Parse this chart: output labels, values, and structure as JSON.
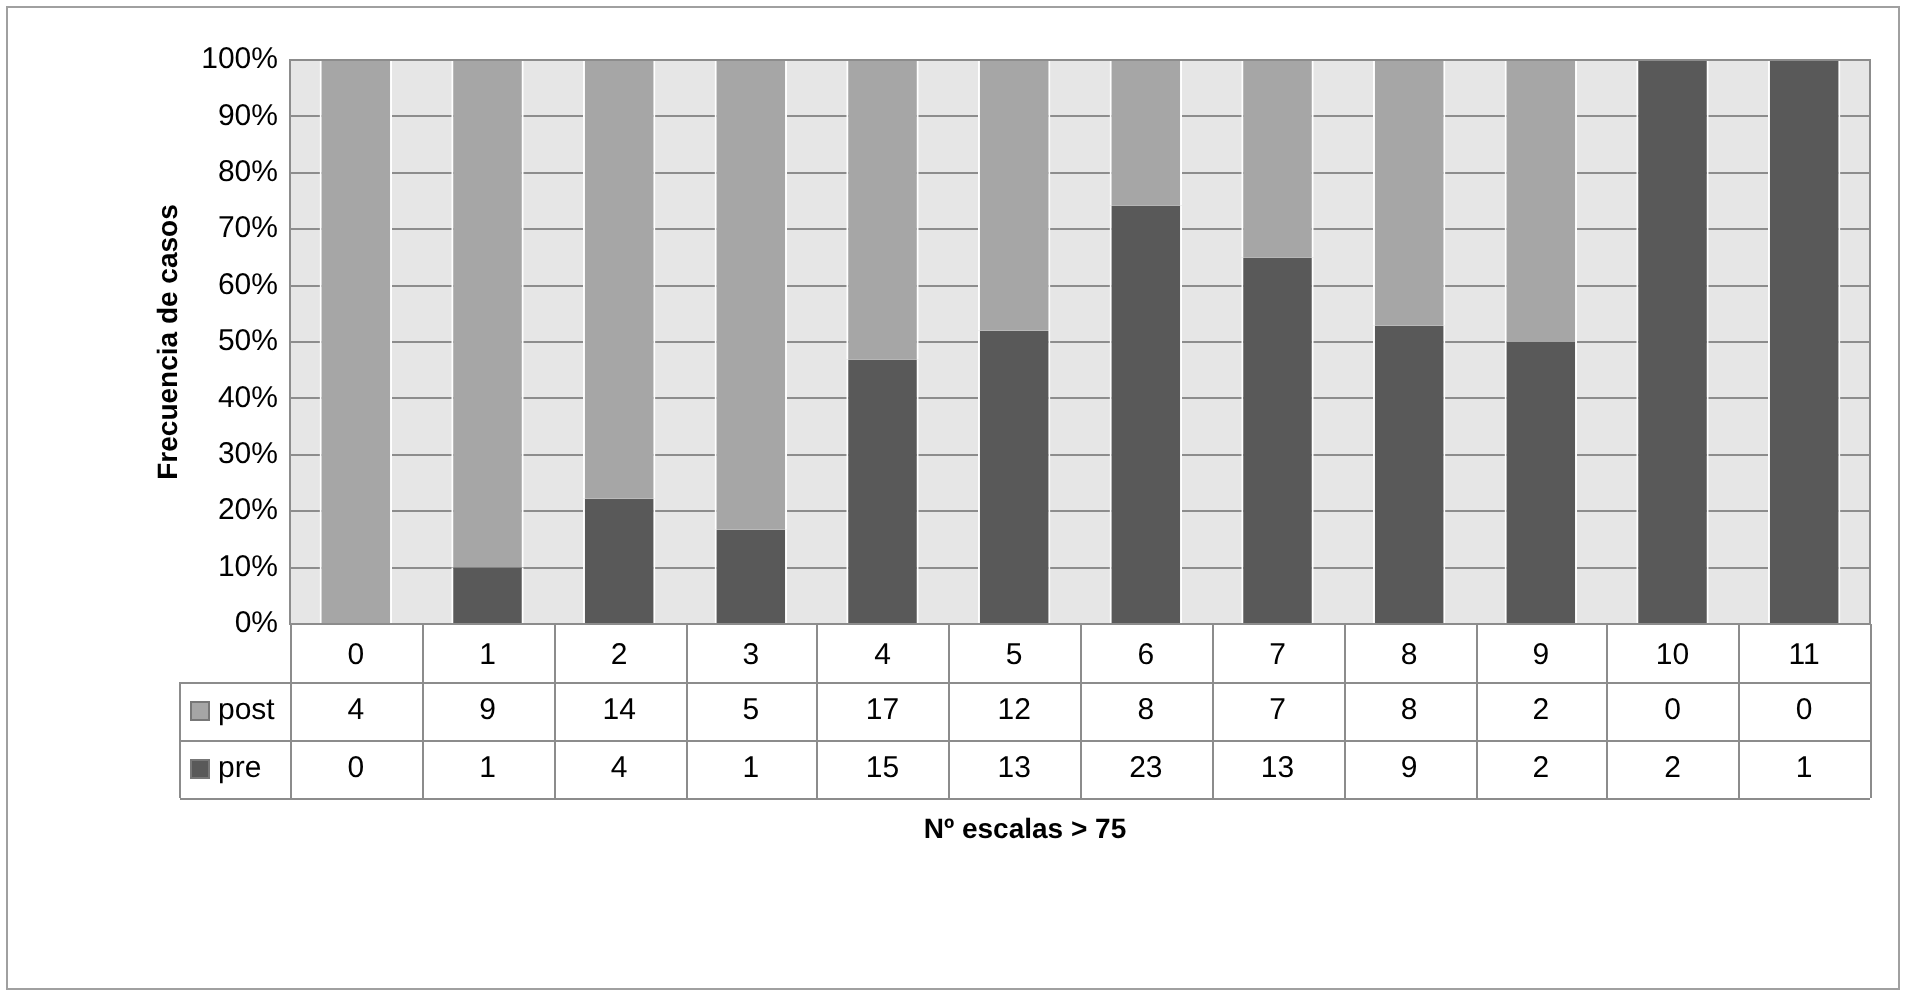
{
  "chart_data": {
    "type": "bar",
    "stacked": true,
    "ylabel": "Frecuencia de casos",
    "xlabel": "Nº escalas > 75",
    "categories": [
      "0",
      "1",
      "2",
      "3",
      "4",
      "5",
      "6",
      "7",
      "8",
      "9",
      "10",
      "11"
    ],
    "series": [
      {
        "name": "pre",
        "color": "#595959",
        "values": [
          0,
          10,
          22.2,
          16.7,
          46.9,
          52,
          74.2,
          65,
          52.9,
          50,
          100,
          100
        ]
      },
      {
        "name": "post",
        "color": "#a6a6a6",
        "values": [
          100,
          90,
          77.8,
          83.3,
          53.1,
          48,
          25.8,
          35,
          47.1,
          50,
          0,
          0
        ]
      }
    ],
    "annotations": [
      "4",
      "9",
      "14",
      "5",
      "17",
      "12",
      "8",
      "7",
      "8",
      "2",
      "0",
      "0",
      "0",
      "1",
      "4",
      "1",
      "15",
      "13",
      "23",
      "13",
      "9",
      "2",
      "2",
      "1"
    ],
    "ylim": [
      0,
      100
    ],
    "yticks": [
      {
        "value": 0,
        "label": "0%"
      },
      {
        "value": 10,
        "label": "10%"
      },
      {
        "value": 20,
        "label": "20%"
      },
      {
        "value": 30,
        "label": "30%"
      },
      {
        "value": 40,
        "label": "40%"
      },
      {
        "value": 50,
        "label": "50%"
      },
      {
        "value": 60,
        "label": "60%"
      },
      {
        "value": 70,
        "label": "70%"
      },
      {
        "value": 80,
        "label": "80%"
      },
      {
        "value": 90,
        "label": "90%"
      },
      {
        "value": 100,
        "label": "100%"
      }
    ],
    "grid": "y",
    "legend": "bottom"
  }
}
